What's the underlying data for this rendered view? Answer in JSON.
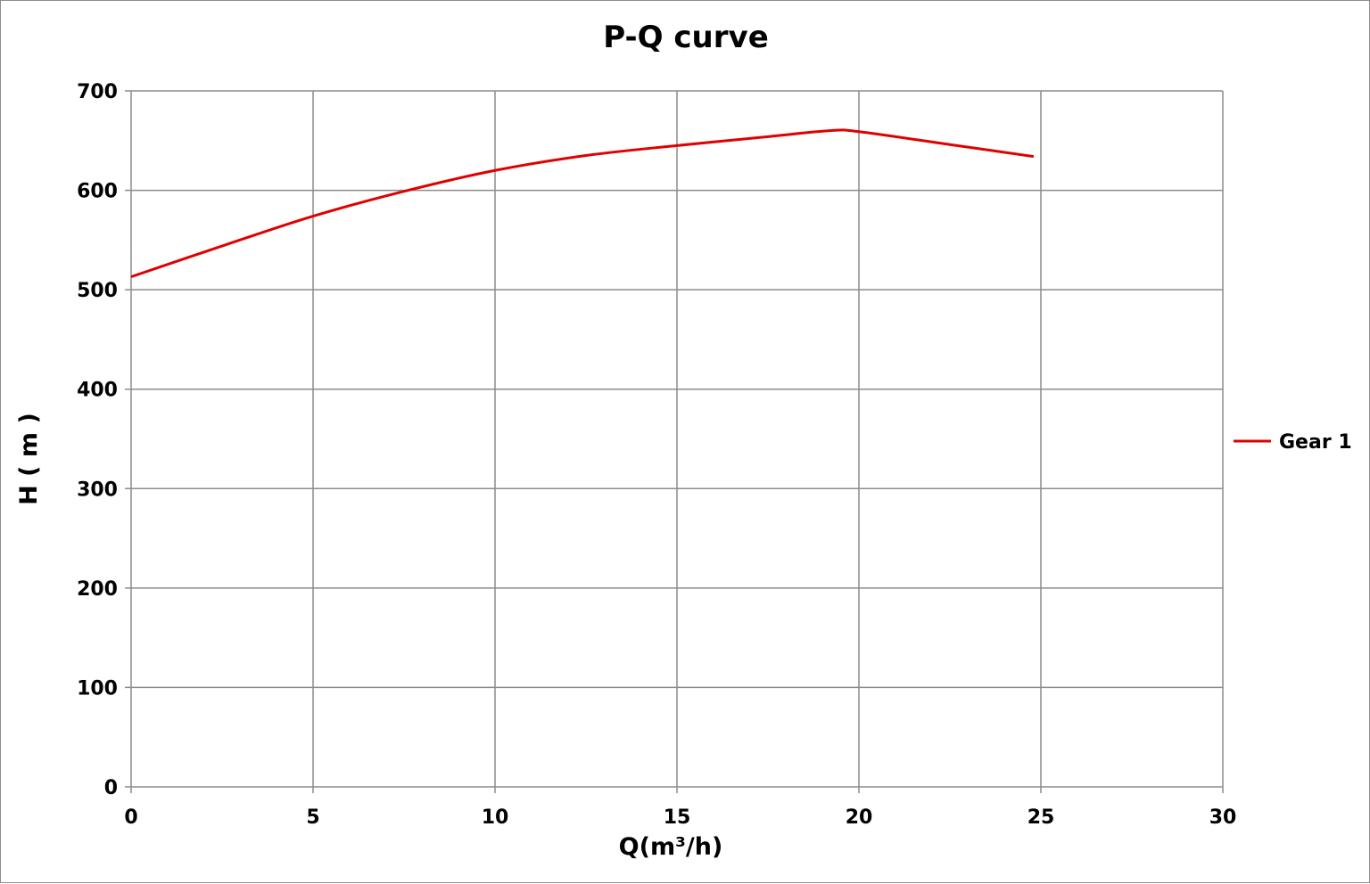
{
  "chart_data": {
    "type": "line",
    "title": "P-Q  curve",
    "xlabel": "Q(m³/h)",
    "ylabel": "H ( m )",
    "xlim": [
      0,
      30
    ],
    "ylim": [
      0,
      700
    ],
    "x_ticks": [
      "0",
      "5",
      "10",
      "15",
      "20",
      "25",
      "30"
    ],
    "y_ticks": [
      "0",
      "100",
      "200",
      "300",
      "400",
      "500",
      "600",
      "700"
    ],
    "grid": true,
    "legend_position": "right",
    "series": [
      {
        "name": "Gear 1",
        "color": "#e00000",
        "x": [
          0,
          2.5,
          5,
          7.5,
          10,
          12.5,
          15,
          17.5,
          19.2,
          20,
          22.5,
          24.8
        ],
        "y": [
          513,
          544,
          574,
          599,
          620,
          635,
          645,
          654,
          660,
          659,
          646,
          634
        ]
      }
    ]
  }
}
